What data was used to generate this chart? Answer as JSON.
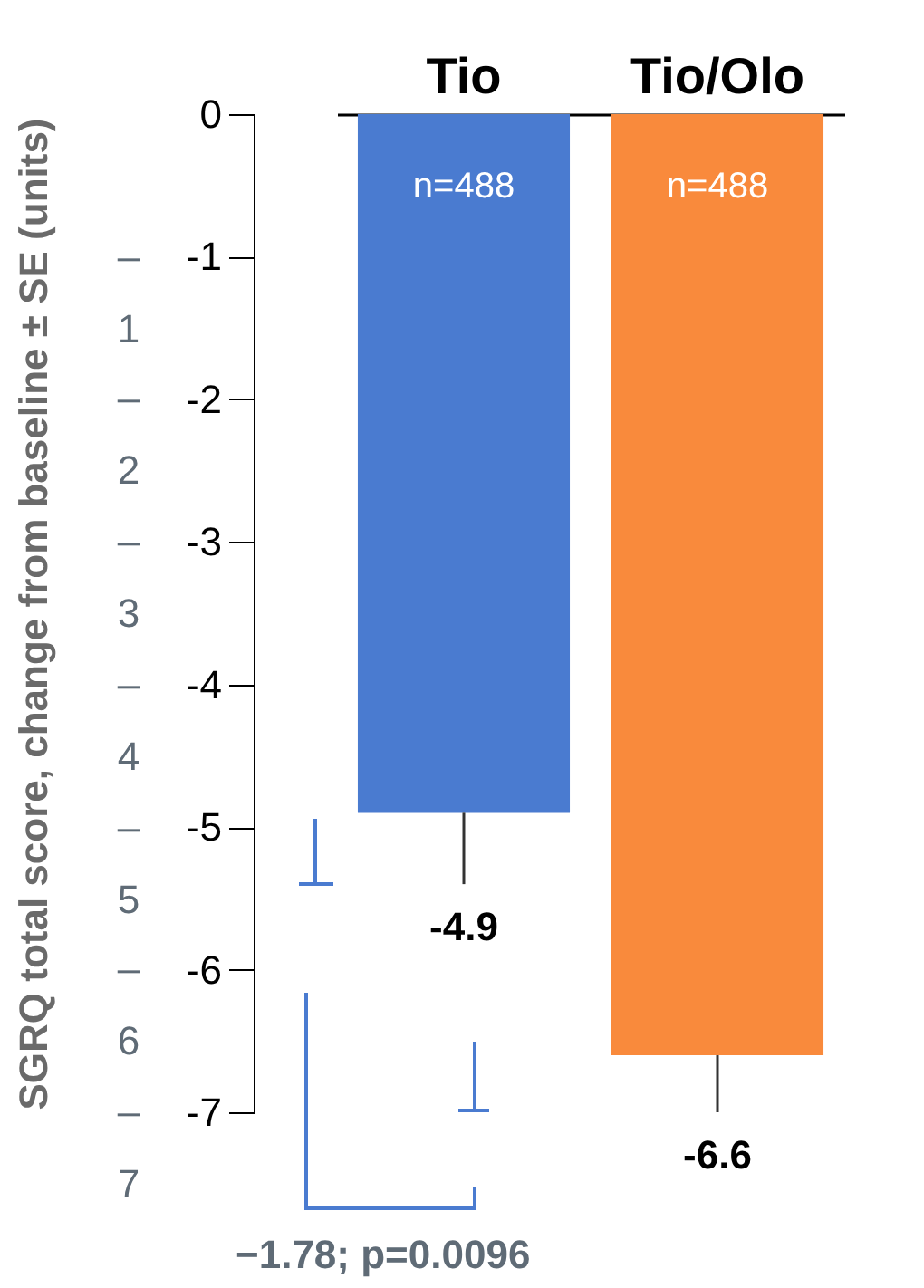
{
  "chart_data": {
    "type": "bar",
    "categories": [
      "Tio",
      "Tio/Olo"
    ],
    "values": [
      -4.9,
      -6.6
    ],
    "colors": [
      "#4a7bd0",
      "#f98a3c"
    ],
    "errors": [
      [
        -5.4,
        -4.9
      ],
      [
        -7.0,
        -6.6
      ]
    ],
    "data_labels": true,
    "ylabel": "SGRQ total score, change from baseline ± SE (units)",
    "ylim": [
      -7,
      0
    ],
    "yticks": [
      0,
      -1,
      -2,
      -3,
      -4,
      -5,
      -6,
      -7
    ],
    "annotations": [
      "n=488",
      "n=488",
      "– 1",
      "– 2",
      "– 3",
      "– 4",
      "– 5",
      "– 6",
      "– 7",
      "−1.78; p=0.0096"
    ],
    "grid": false,
    "legend": false
  }
}
